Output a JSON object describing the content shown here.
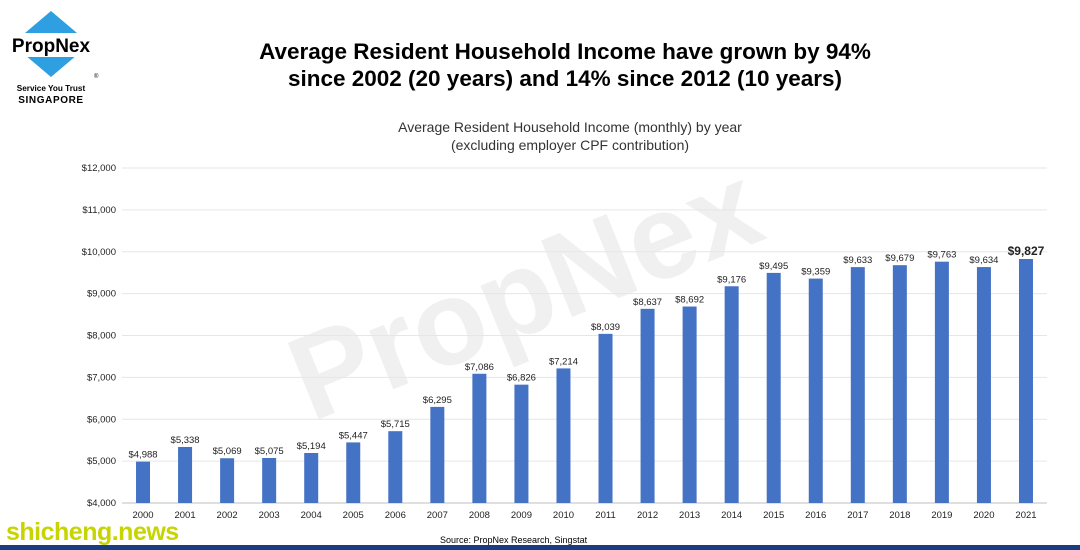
{
  "logo": {
    "name": "PropNex",
    "registered": "®",
    "tagline": "Service You Trust",
    "country": "SINGAPORE",
    "diamond_color": "#2e9fe0"
  },
  "headline": {
    "line1": "Average Resident Household Income have grown by 94%",
    "line2": "since 2002 (20 years) and 14% since 2012 (10 years)"
  },
  "watermark": {
    "center_text": "PropNex",
    "site_text": "shicheng.news"
  },
  "source": "Source: PropNex Research, Singstat",
  "chart_data": {
    "type": "bar",
    "title": "Average Resident Household Income (monthly) by year",
    "subtitle": "(excluding employer CPF contribution)",
    "xlabel": "",
    "ylabel": "",
    "categories": [
      "2000",
      "2001",
      "2002",
      "2003",
      "2004",
      "2005",
      "2006",
      "2007",
      "2008",
      "2009",
      "2010",
      "2011",
      "2012",
      "2013",
      "2014",
      "2015",
      "2016",
      "2017",
      "2018",
      "2019",
      "2020",
      "2021"
    ],
    "values": [
      4988,
      5338,
      5069,
      5075,
      5194,
      5447,
      5715,
      6295,
      7086,
      6826,
      7214,
      8039,
      8637,
      8692,
      9176,
      9495,
      9359,
      9633,
      9679,
      9763,
      9634,
      9827
    ],
    "data_labels": [
      "$4,988",
      "$5,338",
      "$5,069",
      "$5,075",
      "$5,194",
      "$5,447",
      "$5,715",
      "$6,295",
      "$7,086",
      "$6,826",
      "$7,214",
      "$8,039",
      "$8,637",
      "$8,692",
      "$9,176",
      "$9,495",
      "$9,359",
      "$9,633",
      "$9,679",
      "$9,763",
      "$9,634",
      "$9,827"
    ],
    "highlight_last_label": true,
    "ylim": [
      4000,
      12000
    ],
    "yticks": [
      4000,
      5000,
      6000,
      7000,
      8000,
      9000,
      10000,
      11000,
      12000
    ],
    "ytick_labels": [
      "$4,000",
      "$5,000",
      "$6,000",
      "$7,000",
      "$8,000",
      "$9,000",
      "$10,000",
      "$11,000",
      "$12,000"
    ],
    "grid": true,
    "legend": "none",
    "bar_color": "#4472c4"
  }
}
